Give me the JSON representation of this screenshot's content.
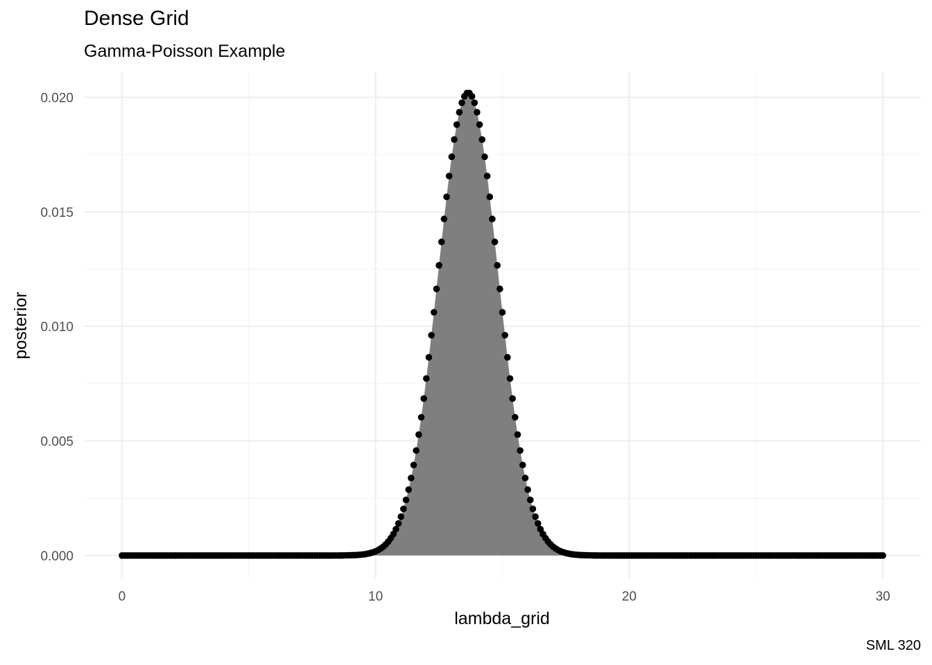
{
  "chart_data": {
    "type": "area",
    "title": "Dense Grid",
    "subtitle": "Gamma-Poisson Example",
    "caption": "SML 320",
    "xlabel": "lambda_grid",
    "ylabel": "posterior",
    "xlim": [
      -1.5,
      31.5
    ],
    "ylim": [
      -0.001,
      0.0211
    ],
    "x_ticks": [
      0,
      10,
      20,
      30
    ],
    "x_tick_labels": [
      "0",
      "10",
      "20",
      "30"
    ],
    "y_ticks": [
      0.0,
      0.005,
      0.01,
      0.015,
      0.02
    ],
    "y_tick_labels": [
      "0.000",
      "0.005",
      "0.010",
      "0.015",
      "0.020"
    ],
    "grid": true,
    "series": [
      {
        "grid_range": [
          0,
          30
        ],
        "n_points": 301,
        "distribution_peak_x": 13.65,
        "distribution_peak_y": 0.0202,
        "distribution_sd": 1.19,
        "point_color": "#000000",
        "fill_color": "#7f7f7f"
      }
    ]
  }
}
